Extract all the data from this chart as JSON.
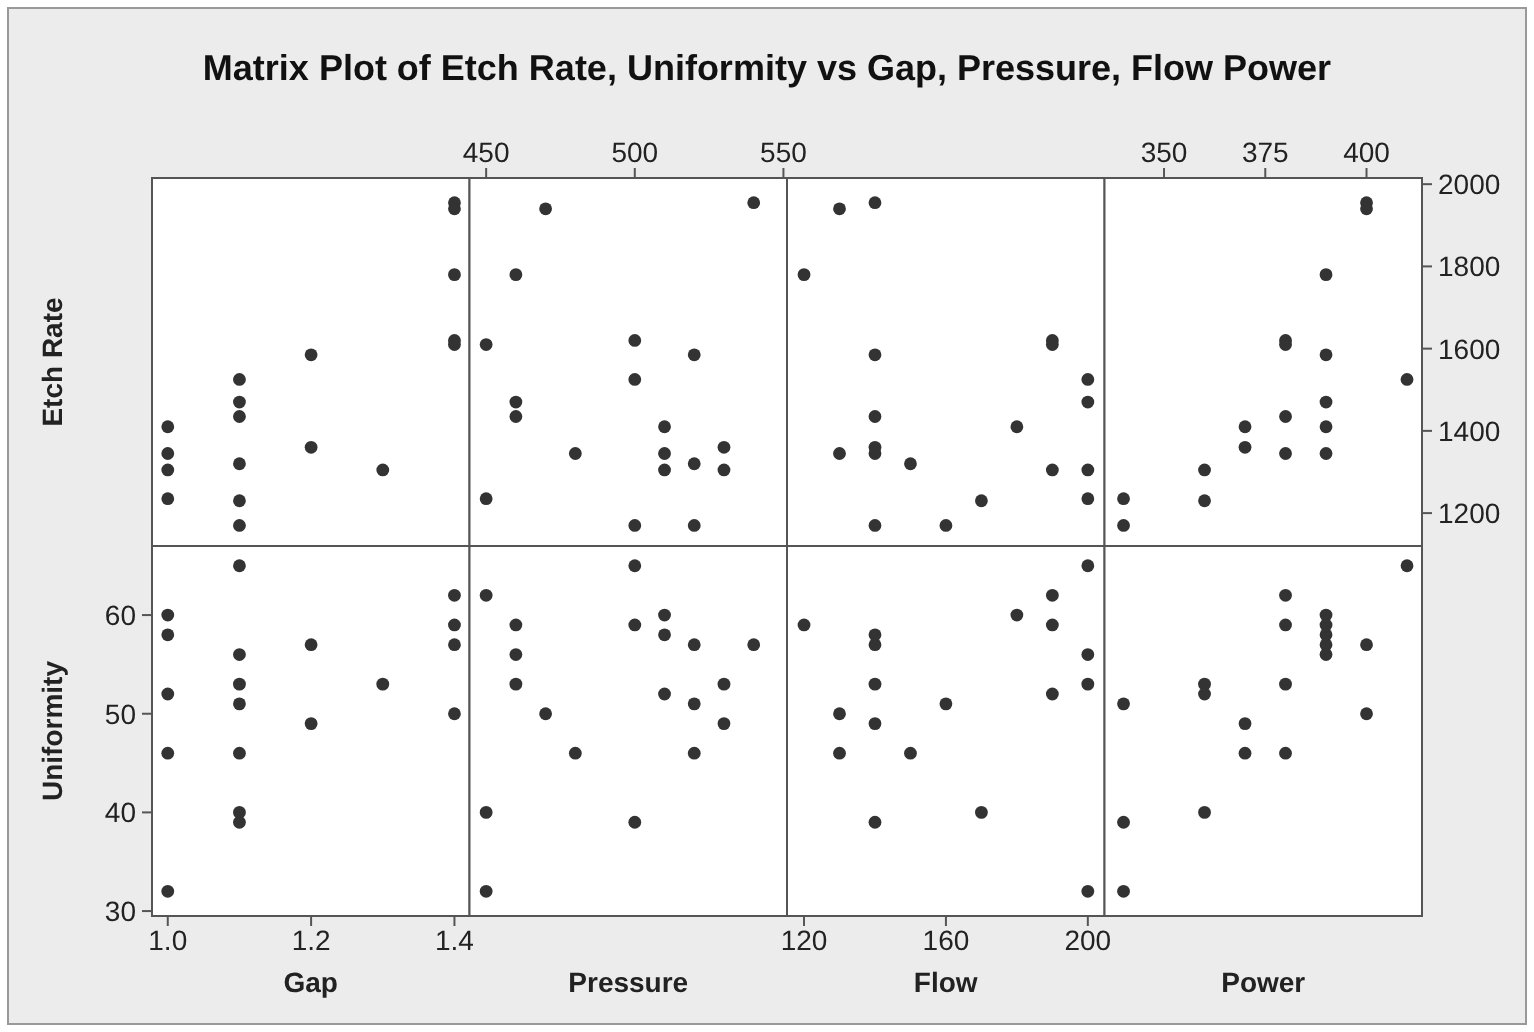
{
  "chart_data": [
    {
      "type": "scatter",
      "title": "Matrix Plot of Etch Rate, Uniformity vs Gap, Pressure, Flow Power",
      "ylabel": "Etch Rate",
      "color": "#333333",
      "marker": "circle",
      "tick_labels": false,
      "xlim": [
        0.978,
        1.421
      ],
      "ylim": [
        1120,
        2015
      ],
      "x": [
        1.0,
        1.0,
        1.0,
        1.0,
        1.1,
        1.1,
        1.1,
        1.1,
        1.1,
        1.1,
        1.2,
        1.2,
        1.3,
        1.4,
        1.4,
        1.4,
        1.4,
        1.4
      ],
      "values": [
        1410,
        1345,
        1305,
        1235,
        1525,
        1470,
        1435,
        1320,
        1230,
        1170,
        1585,
        1360,
        1305,
        1955,
        1940,
        1780,
        1620,
        1610
      ]
    },
    {
      "type": "scatter",
      "color": "#333333",
      "marker": "circle",
      "tick_labels": "x",
      "xlim": [
        444.4,
        551.2
      ],
      "xticks": [
        450,
        500,
        550
      ],
      "ylim": [
        1120,
        2015
      ],
      "x": [
        470,
        540,
        460,
        450,
        500,
        520,
        500,
        460,
        460,
        510,
        480,
        510,
        530,
        510,
        520,
        530,
        450,
        500,
        520
      ],
      "values": [
        1940,
        1955,
        1780,
        1610,
        1620,
        1585,
        1525,
        1470,
        1435,
        1410,
        1345,
        1345,
        1360,
        1305,
        1320,
        1305,
        1235,
        1170,
        1170
      ]
    },
    {
      "type": "scatter",
      "color": "#333333",
      "marker": "circle",
      "tick_labels": false,
      "xlim": [
        115.2,
        204.7
      ],
      "ylim": [
        1120,
        2015
      ],
      "x": [
        130,
        140,
        120,
        140,
        140,
        130,
        140,
        140,
        150,
        190,
        190,
        200,
        200,
        180,
        190,
        200,
        170,
        200,
        140,
        160
      ],
      "values": [
        1940,
        1955,
        1780,
        1585,
        1435,
        1345,
        1360,
        1345,
        1320,
        1620,
        1610,
        1525,
        1470,
        1410,
        1305,
        1305,
        1230,
        1235,
        1170,
        1170
      ]
    },
    {
      "type": "scatter",
      "color": "#333333",
      "marker": "circle",
      "xlim": [
        335.3,
        413.7
      ],
      "xticks": [
        350,
        375,
        400
      ],
      "ylim": [
        1120,
        2015
      ],
      "yticks": [
        1200,
        1400,
        1600,
        1800,
        2000
      ],
      "x": [
        400,
        400,
        390,
        380,
        380,
        390,
        410,
        390,
        380,
        390,
        370,
        380,
        390,
        370,
        360,
        360,
        340,
        340
      ],
      "values": [
        1955,
        1940,
        1780,
        1620,
        1610,
        1585,
        1525,
        1470,
        1435,
        1410,
        1410,
        1345,
        1345,
        1360,
        1305,
        1230,
        1235,
        1170
      ]
    },
    {
      "type": "scatter",
      "xlabel": "Gap",
      "ylabel": "Uniformity",
      "color": "#333333",
      "marker": "circle",
      "xlim": [
        0.978,
        1.421
      ],
      "xticks": [
        {
          "value": 1.0,
          "label": "1.0"
        },
        1.2,
        1.4
      ],
      "ylim": [
        29.5,
        67
      ],
      "yticks": [
        30,
        40,
        50,
        60
      ],
      "x": [
        1.0,
        1.0,
        1.0,
        1.0,
        1.0,
        1.1,
        1.1,
        1.1,
        1.1,
        1.1,
        1.1,
        1.1,
        1.2,
        1.2,
        1.3,
        1.4,
        1.4,
        1.4,
        1.4
      ],
      "values": [
        60,
        58,
        52,
        46,
        32,
        65,
        56,
        53,
        51,
        46,
        40,
        39,
        57,
        49,
        53,
        62,
        59,
        57,
        50
      ]
    },
    {
      "type": "scatter",
      "xlabel": "Pressure",
      "color": "#333333",
      "marker": "circle",
      "tick_labels": false,
      "xlim": [
        444.4,
        551.2
      ],
      "ylim": [
        29.5,
        67
      ],
      "x": [
        450,
        460,
        460,
        460,
        470,
        480,
        450,
        450,
        500,
        500,
        500,
        510,
        510,
        510,
        520,
        520,
        520,
        530,
        530,
        540
      ],
      "values": [
        62,
        59,
        56,
        53,
        50,
        46,
        40,
        32,
        65,
        59,
        39,
        60,
        58,
        52,
        57,
        51,
        46,
        53,
        49,
        57
      ]
    },
    {
      "type": "scatter",
      "xlabel": "Flow",
      "color": "#333333",
      "marker": "circle",
      "tick_labels": "x",
      "xlim": [
        115.2,
        204.7
      ],
      "xticks": [
        120,
        160,
        200
      ],
      "ylim": [
        29.5,
        67
      ],
      "x": [
        120,
        130,
        130,
        140,
        140,
        140,
        140,
        140,
        150,
        160,
        170,
        180,
        190,
        190,
        190,
        200,
        200,
        200,
        200
      ],
      "values": [
        59,
        50,
        46,
        58,
        57,
        53,
        49,
        39,
        46,
        51,
        40,
        60,
        62,
        59,
        52,
        65,
        56,
        53,
        32
      ]
    },
    {
      "type": "scatter",
      "xlabel": "Power",
      "color": "#333333",
      "marker": "circle",
      "tick_labels": false,
      "xlim": [
        335.3,
        413.7
      ],
      "ylim": [
        29.5,
        67
      ],
      "x": [
        340,
        340,
        340,
        360,
        360,
        360,
        370,
        370,
        380,
        380,
        380,
        380,
        390,
        390,
        390,
        390,
        390,
        400,
        400,
        410
      ],
      "values": [
        51,
        39,
        32,
        53,
        52,
        40,
        49,
        46,
        62,
        59,
        53,
        46,
        60,
        59,
        58,
        57,
        56,
        57,
        50,
        65
      ]
    }
  ]
}
